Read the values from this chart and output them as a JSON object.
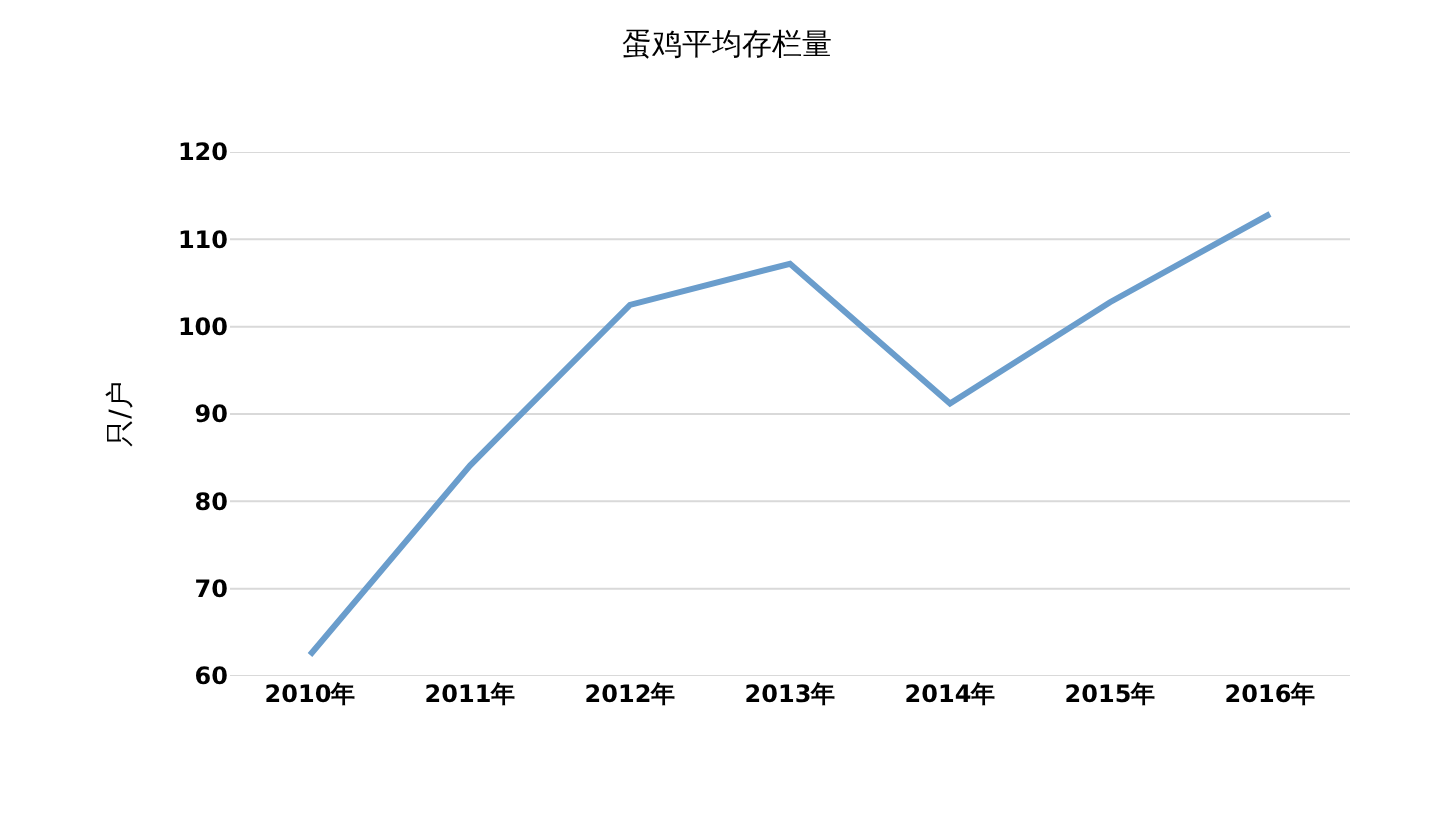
{
  "chart_data": {
    "type": "line",
    "title": "蛋鸡平均存栏量",
    "ylabel": "只/户",
    "categories": [
      "2010年",
      "2011年",
      "2012年",
      "2013年",
      "2014年",
      "2015年",
      "2016年"
    ],
    "series": [
      {
        "color": "#6a9dcc",
        "values": [
          62.4,
          84.1,
          102.5,
          107.2,
          91.2,
          102.8,
          112.9
        ]
      }
    ],
    "ylim": [
      60,
      120
    ],
    "yticks": [
      60,
      70,
      80,
      90,
      100,
      110,
      120
    ],
    "grid": "y",
    "marker": "none",
    "line_style": "solid"
  }
}
